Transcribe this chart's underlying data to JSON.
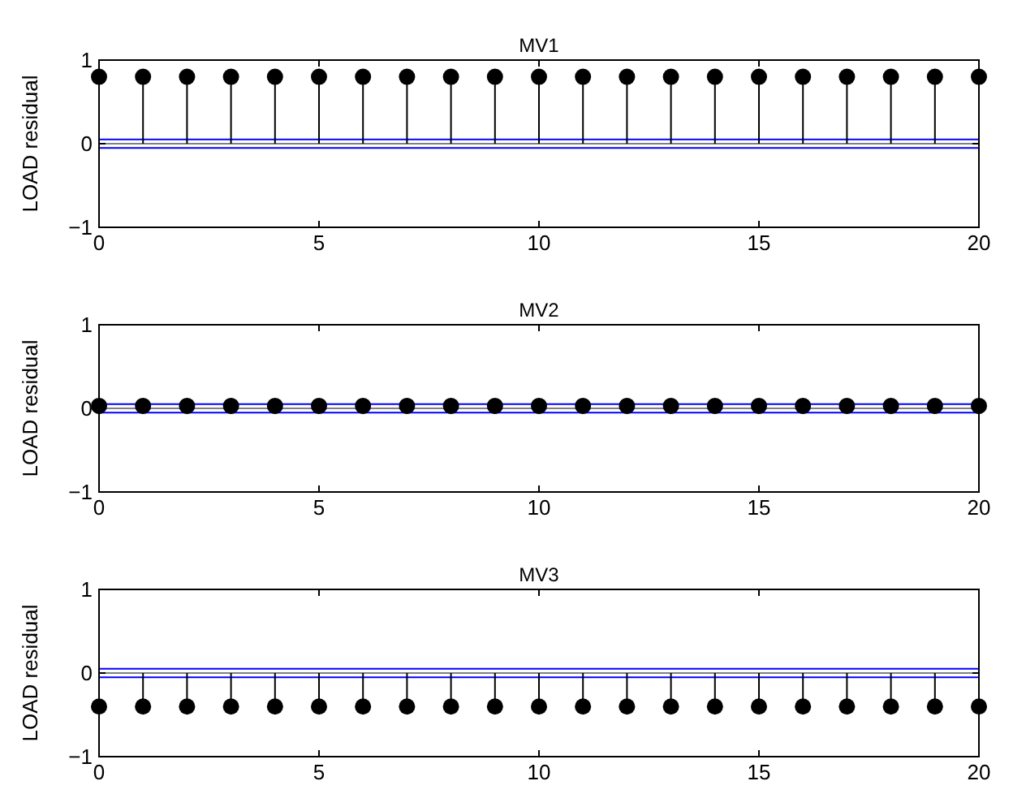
{
  "chart_data": [
    {
      "type": "lollipop",
      "title": "MV1",
      "ylabel": "LOAD residual",
      "x": [
        0,
        1,
        2,
        3,
        4,
        5,
        6,
        7,
        8,
        9,
        10,
        11,
        12,
        13,
        14,
        15,
        16,
        17,
        18,
        19,
        20
      ],
      "series": [
        {
          "color": "#000000",
          "values": [
            0.8,
            0.8,
            0.8,
            0.8,
            0.8,
            0.8,
            0.8,
            0.8,
            0.8,
            0.8,
            0.8,
            0.8,
            0.8,
            0.8,
            0.8,
            0.8,
            0.8,
            0.8,
            0.8,
            0.8,
            0.8
          ]
        }
      ],
      "xlim": [
        0,
        20
      ],
      "xticks": [
        0,
        5,
        10,
        15,
        20
      ],
      "ylim": [
        -1,
        1
      ],
      "yticks": [
        -1,
        0,
        1
      ],
      "marker": "circle",
      "ref_lines": [
        {
          "axis": "y",
          "value": 0,
          "color": "#808080"
        },
        {
          "axis": "y",
          "value": 0.05,
          "color": "#0000ff"
        },
        {
          "axis": "y",
          "value": -0.05,
          "color": "#0000ff"
        }
      ]
    },
    {
      "type": "lollipop",
      "title": "MV2",
      "ylabel": "LOAD residual",
      "x": [
        0,
        1,
        2,
        3,
        4,
        5,
        6,
        7,
        8,
        9,
        10,
        11,
        12,
        13,
        14,
        15,
        16,
        17,
        18,
        19,
        20
      ],
      "series": [
        {
          "color": "#000000",
          "values": [
            0.03,
            0.03,
            0.03,
            0.03,
            0.03,
            0.03,
            0.03,
            0.03,
            0.03,
            0.03,
            0.03,
            0.03,
            0.03,
            0.03,
            0.03,
            0.03,
            0.03,
            0.03,
            0.03,
            0.03,
            0.03
          ]
        }
      ],
      "xlim": [
        0,
        20
      ],
      "xticks": [
        0,
        5,
        10,
        15,
        20
      ],
      "ylim": [
        -1,
        1
      ],
      "yticks": [
        -1,
        0,
        1
      ],
      "marker": "circle",
      "ref_lines": [
        {
          "axis": "y",
          "value": 0,
          "color": "#808080"
        },
        {
          "axis": "y",
          "value": 0.05,
          "color": "#0000ff"
        },
        {
          "axis": "y",
          "value": -0.05,
          "color": "#0000ff"
        }
      ]
    },
    {
      "type": "lollipop",
      "title": "MV3",
      "ylabel": "LOAD residual",
      "x": [
        0,
        1,
        2,
        3,
        4,
        5,
        6,
        7,
        8,
        9,
        10,
        11,
        12,
        13,
        14,
        15,
        16,
        17,
        18,
        19,
        20
      ],
      "series": [
        {
          "color": "#000000",
          "values": [
            -0.4,
            -0.4,
            -0.4,
            -0.4,
            -0.4,
            -0.4,
            -0.4,
            -0.4,
            -0.4,
            -0.4,
            -0.4,
            -0.4,
            -0.4,
            -0.4,
            -0.4,
            -0.4,
            -0.4,
            -0.4,
            -0.4,
            -0.4,
            -0.4
          ]
        }
      ],
      "xlim": [
        0,
        20
      ],
      "xticks": [
        0,
        5,
        10,
        15,
        20
      ],
      "ylim": [
        -1,
        1
      ],
      "yticks": [
        -1,
        0,
        1
      ],
      "marker": "circle",
      "ref_lines": [
        {
          "axis": "y",
          "value": 0,
          "color": "#808080"
        },
        {
          "axis": "y",
          "value": 0.05,
          "color": "#0000ff"
        },
        {
          "axis": "y",
          "value": -0.05,
          "color": "#0000ff"
        }
      ]
    }
  ]
}
